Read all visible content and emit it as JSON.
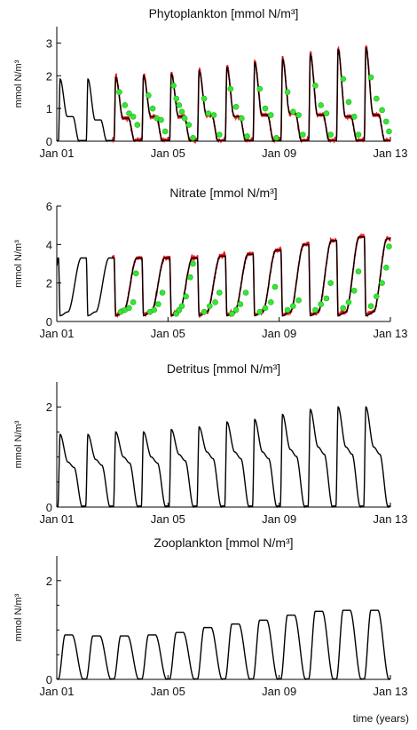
{
  "footer_label": "time (years)",
  "colors": {
    "model": "#000000",
    "assimilated": "#e8141a",
    "observations": "#33e833"
  },
  "chart_data": [
    {
      "type": "line",
      "title": "Phytoplankton [mmol N/m³]",
      "ylabel": "mmol N/m³",
      "xlim": [
        "Jan 01",
        "Jan 13"
      ],
      "ylim": [
        0,
        3.5
      ],
      "yticks": [
        0,
        1,
        2,
        3
      ],
      "xticks": [
        {
          "label": "Jan 01",
          "year": 0
        },
        {
          "label": "Jan 05",
          "year": 4
        },
        {
          "label": "Jan 09",
          "year": 8
        },
        {
          "label": "Jan 13",
          "year": 12
        }
      ],
      "peaks": [
        1.9,
        1.9,
        1.95,
        2.0,
        2.05,
        2.15,
        2.25,
        2.4,
        2.5,
        2.65,
        2.8,
        2.85
      ],
      "plateaus": [
        0.75,
        0.65,
        0.7,
        0.75,
        0.75,
        0.8,
        0.75,
        0.8,
        0.85,
        0.8,
        0.75,
        0.8
      ],
      "assimilation_from_year": 2.0,
      "observations": [
        {
          "year": 2.25,
          "value": 1.5
        },
        {
          "year": 2.45,
          "value": 1.1
        },
        {
          "year": 2.6,
          "value": 0.85
        },
        {
          "year": 2.75,
          "value": 0.75
        },
        {
          "year": 2.9,
          "value": 0.5
        },
        {
          "year": 3.3,
          "value": 1.4
        },
        {
          "year": 3.45,
          "value": 1.0
        },
        {
          "year": 3.6,
          "value": 0.7
        },
        {
          "year": 3.75,
          "value": 0.65
        },
        {
          "year": 3.9,
          "value": 0.3
        },
        {
          "year": 4.2,
          "value": 1.7
        },
        {
          "year": 4.3,
          "value": 1.3
        },
        {
          "year": 4.4,
          "value": 1.1
        },
        {
          "year": 4.5,
          "value": 0.9
        },
        {
          "year": 4.6,
          "value": 0.7
        },
        {
          "year": 4.75,
          "value": 0.5
        },
        {
          "year": 4.9,
          "value": 0.1
        },
        {
          "year": 5.3,
          "value": 1.3
        },
        {
          "year": 5.45,
          "value": 0.85
        },
        {
          "year": 5.65,
          "value": 0.8
        },
        {
          "year": 5.85,
          "value": 0.2
        },
        {
          "year": 6.25,
          "value": 1.6
        },
        {
          "year": 6.45,
          "value": 1.05
        },
        {
          "year": 6.65,
          "value": 0.7
        },
        {
          "year": 6.85,
          "value": 0.15
        },
        {
          "year": 7.3,
          "value": 1.6
        },
        {
          "year": 7.5,
          "value": 1.0
        },
        {
          "year": 7.7,
          "value": 0.8
        },
        {
          "year": 7.9,
          "value": 0.1
        },
        {
          "year": 8.3,
          "value": 1.5
        },
        {
          "year": 8.5,
          "value": 0.9
        },
        {
          "year": 8.7,
          "value": 0.8
        },
        {
          "year": 8.85,
          "value": 0.2
        },
        {
          "year": 9.3,
          "value": 1.7
        },
        {
          "year": 9.5,
          "value": 1.1
        },
        {
          "year": 9.7,
          "value": 0.85
        },
        {
          "year": 9.85,
          "value": 0.2
        },
        {
          "year": 10.3,
          "value": 1.9
        },
        {
          "year": 10.5,
          "value": 1.2
        },
        {
          "year": 10.7,
          "value": 0.75
        },
        {
          "year": 10.85,
          "value": 0.2
        },
        {
          "year": 11.3,
          "value": 1.95
        },
        {
          "year": 11.5,
          "value": 1.3
        },
        {
          "year": 11.7,
          "value": 0.95
        },
        {
          "year": 11.85,
          "value": 0.6
        },
        {
          "year": 11.95,
          "value": 0.3
        }
      ]
    },
    {
      "type": "line",
      "title": "Nitrate [mmol N/m³]",
      "ylabel": "mmol N/m³",
      "xlim": [
        "Jan 01",
        "Jan 13"
      ],
      "ylim": [
        0,
        6
      ],
      "yticks": [
        0,
        2,
        4,
        6
      ],
      "xticks": [
        {
          "label": "Jan 01",
          "year": 0
        },
        {
          "label": "Jan 05",
          "year": 4
        },
        {
          "label": "Jan 09",
          "year": 8
        },
        {
          "label": "Jan 13",
          "year": 12
        }
      ],
      "winter_max": [
        3.3,
        3.3,
        3.3,
        3.3,
        3.3,
        3.4,
        3.5,
        3.7,
        4.0,
        4.2,
        4.4,
        4.4
      ],
      "year_end_value": 4.3,
      "assimilation_from_year": 2.0,
      "observations": [
        {
          "year": 2.3,
          "value": 0.5
        },
        {
          "year": 2.45,
          "value": 0.6
        },
        {
          "year": 2.6,
          "value": 0.7
        },
        {
          "year": 2.75,
          "value": 1.0
        },
        {
          "year": 2.85,
          "value": 2.5
        },
        {
          "year": 3.35,
          "value": 0.5
        },
        {
          "year": 3.5,
          "value": 0.6
        },
        {
          "year": 3.65,
          "value": 0.9
        },
        {
          "year": 3.8,
          "value": 1.5
        },
        {
          "year": 4.3,
          "value": 0.4
        },
        {
          "year": 4.4,
          "value": 0.6
        },
        {
          "year": 4.5,
          "value": 0.8
        },
        {
          "year": 4.65,
          "value": 1.3
        },
        {
          "year": 4.8,
          "value": 2.3
        },
        {
          "year": 4.9,
          "value": 3.0
        },
        {
          "year": 5.3,
          "value": 0.5
        },
        {
          "year": 5.5,
          "value": 0.8
        },
        {
          "year": 5.7,
          "value": 1.0
        },
        {
          "year": 5.85,
          "value": 1.5
        },
        {
          "year": 6.3,
          "value": 0.4
        },
        {
          "year": 6.45,
          "value": 0.6
        },
        {
          "year": 6.6,
          "value": 0.9
        },
        {
          "year": 6.8,
          "value": 1.5
        },
        {
          "year": 7.3,
          "value": 0.5
        },
        {
          "year": 7.5,
          "value": 0.7
        },
        {
          "year": 7.7,
          "value": 1.0
        },
        {
          "year": 7.85,
          "value": 1.8
        },
        {
          "year": 8.3,
          "value": 0.6
        },
        {
          "year": 8.5,
          "value": 0.8
        },
        {
          "year": 8.7,
          "value": 1.1
        },
        {
          "year": 9.3,
          "value": 0.6
        },
        {
          "year": 9.5,
          "value": 0.9
        },
        {
          "year": 9.7,
          "value": 1.2
        },
        {
          "year": 9.85,
          "value": 2.0
        },
        {
          "year": 10.3,
          "value": 0.7
        },
        {
          "year": 10.5,
          "value": 1.0
        },
        {
          "year": 10.7,
          "value": 1.6
        },
        {
          "year": 10.85,
          "value": 2.6
        },
        {
          "year": 11.3,
          "value": 0.8
        },
        {
          "year": 11.5,
          "value": 1.3
        },
        {
          "year": 11.7,
          "value": 2.0
        },
        {
          "year": 11.85,
          "value": 2.8
        },
        {
          "year": 11.95,
          "value": 3.9
        }
      ]
    },
    {
      "type": "line",
      "title": "Detritus [mmol N/m³]",
      "ylabel": "mmol N/m³",
      "xlim": [
        "Jan 01",
        "Jan 13"
      ],
      "ylim": [
        0,
        2.5
      ],
      "yticks": [
        0,
        2
      ],
      "xticks": [
        {
          "label": "Jan 01",
          "year": 0
        },
        {
          "label": "Jan 05",
          "year": 4
        },
        {
          "label": "Jan 09",
          "year": 8
        },
        {
          "label": "Jan 13",
          "year": 12
        }
      ],
      "peaks": [
        1.45,
        1.45,
        1.5,
        1.5,
        1.55,
        1.6,
        1.7,
        1.75,
        1.85,
        1.95,
        2.0,
        2.0
      ],
      "plateaus": [
        0.9,
        0.95,
        1.0,
        1.0,
        1.05,
        1.1,
        1.1,
        1.1,
        1.15,
        1.2,
        1.2,
        1.2
      ]
    },
    {
      "type": "line",
      "title": "Zooplankton [mmol N/m³]",
      "ylabel": "mmol N/m³",
      "xlim": [
        "Jan 01",
        "Jan 13"
      ],
      "ylim": [
        0,
        2.5
      ],
      "yticks": [
        0,
        2
      ],
      "xticks": [
        {
          "label": "Jan 01",
          "year": 0
        },
        {
          "label": "Jan 05",
          "year": 4
        },
        {
          "label": "Jan 09",
          "year": 8
        },
        {
          "label": "Jan 13",
          "year": 12
        }
      ],
      "peaks": [
        0.9,
        0.88,
        0.88,
        0.9,
        0.95,
        1.05,
        1.12,
        1.2,
        1.3,
        1.38,
        1.4,
        1.4
      ]
    }
  ]
}
